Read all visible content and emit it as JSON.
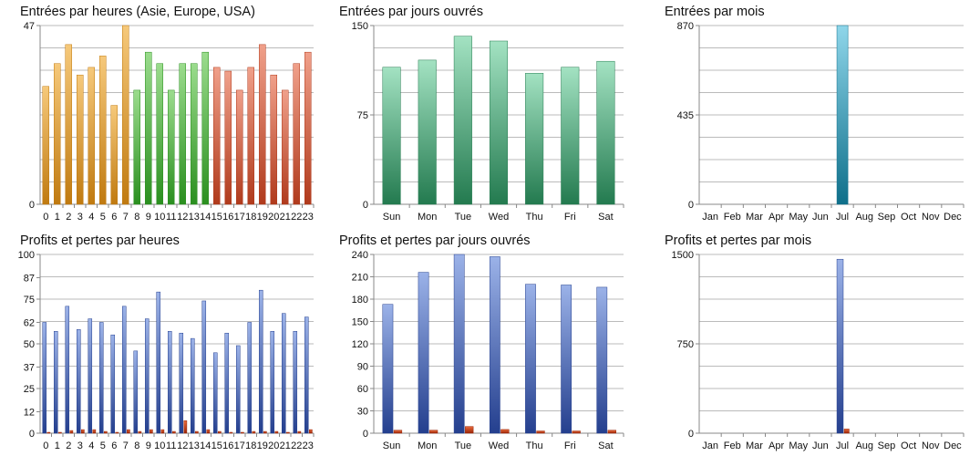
{
  "colors": {
    "orange": [
      "#f6c97b",
      "#c07a10"
    ],
    "green": [
      "#9bdc8d",
      "#2a8f1f"
    ],
    "red": [
      "#f0a08a",
      "#b03a1c"
    ],
    "mint": [
      "#a3e2c2",
      "#237a4f"
    ],
    "cyan": [
      "#8fd6ea",
      "#0e6f8a"
    ],
    "blue": [
      "#9bb2e8",
      "#243f8e"
    ],
    "loss": [
      "#e86a3a",
      "#9a2508"
    ],
    "grid": "#bbbbbb",
    "axis": "#888888"
  },
  "chart_data": [
    {
      "type": "bar",
      "title": "Entrées par heures (Asie, Europe, USA)",
      "categories": [
        "0",
        "1",
        "2",
        "3",
        "4",
        "5",
        "6",
        "7",
        "8",
        "9",
        "10",
        "11",
        "12",
        "13",
        "14",
        "15",
        "16",
        "17",
        "18",
        "19",
        "20",
        "21",
        "22",
        "23"
      ],
      "yticks": [
        "0",
        "47"
      ],
      "ylim": [
        0,
        47
      ],
      "grid": true,
      "series": [
        {
          "values": [
            31,
            37,
            42,
            34,
            36,
            39,
            26,
            47,
            30,
            40,
            37,
            30,
            37,
            37,
            40,
            36,
            35,
            30,
            36,
            42,
            34,
            30,
            37,
            40
          ],
          "colors": [
            "orange",
            "orange",
            "orange",
            "orange",
            "orange",
            "orange",
            "orange",
            "orange",
            "green",
            "green",
            "green",
            "green",
            "green",
            "green",
            "green",
            "red",
            "red",
            "red",
            "red",
            "red",
            "red",
            "red",
            "red",
            "red"
          ]
        }
      ]
    },
    {
      "type": "bar",
      "title": "Entrées par jours ouvrés",
      "categories": [
        "Sun",
        "Mon",
        "Tue",
        "Wed",
        "Thu",
        "Fri",
        "Sat"
      ],
      "yticks": [
        "0",
        "75",
        "150"
      ],
      "ylim": [
        0,
        150
      ],
      "grid": true,
      "series": [
        {
          "values": [
            115,
            121,
            141,
            137,
            110,
            115,
            120
          ],
          "colors": [
            "mint"
          ]
        }
      ]
    },
    {
      "type": "bar",
      "title": "Entrées par mois",
      "categories": [
        "Jan",
        "Feb",
        "Mar",
        "Apr",
        "May",
        "Jun",
        "Jul",
        "Aug",
        "Sep",
        "Oct",
        "Nov",
        "Dec"
      ],
      "yticks": [
        "0",
        "435",
        "870"
      ],
      "ylim": [
        0,
        870
      ],
      "grid": true,
      "series": [
        {
          "values": [
            0,
            0,
            0,
            0,
            0,
            0,
            870,
            0,
            0,
            0,
            0,
            0
          ],
          "colors": [
            "cyan"
          ]
        }
      ]
    },
    {
      "type": "bar",
      "title": "Profits et pertes par heures",
      "categories": [
        "0",
        "1",
        "2",
        "3",
        "4",
        "5",
        "6",
        "7",
        "8",
        "9",
        "10",
        "11",
        "12",
        "13",
        "14",
        "15",
        "16",
        "17",
        "18",
        "19",
        "20",
        "21",
        "22",
        "23"
      ],
      "yticks": [
        "0",
        "12",
        "25",
        "37",
        "50",
        "62",
        "75",
        "87",
        "100"
      ],
      "ylim": [
        0,
        100
      ],
      "grid": true,
      "series": [
        {
          "values": [
            62,
            57,
            71,
            58,
            64,
            62,
            55,
            71,
            46,
            64,
            79,
            57,
            56,
            53,
            74,
            45,
            56,
            49,
            62,
            80,
            57,
            67,
            57,
            65
          ],
          "colors": [
            "blue"
          ]
        },
        {
          "values": [
            0.5,
            0.5,
            1.5,
            2,
            2,
            1,
            0.5,
            2,
            1,
            2,
            2,
            1,
            7,
            1,
            2,
            1,
            0.5,
            0.5,
            1,
            1,
            1,
            0.5,
            1,
            2
          ],
          "colors": [
            "loss"
          ]
        }
      ]
    },
    {
      "type": "bar",
      "title": "Profits et pertes par jours ouvrés",
      "categories": [
        "Sun",
        "Mon",
        "Tue",
        "Wed",
        "Thu",
        "Fri",
        "Sat"
      ],
      "yticks": [
        "0",
        "30",
        "60",
        "90",
        "120",
        "150",
        "180",
        "210",
        "240"
      ],
      "ylim": [
        0,
        240
      ],
      "grid": true,
      "series": [
        {
          "values": [
            173,
            216,
            240,
            237,
            200,
            199,
            196
          ],
          "colors": [
            "blue"
          ]
        },
        {
          "values": [
            4,
            4,
            9,
            5,
            3,
            3,
            4
          ],
          "colors": [
            "loss"
          ]
        }
      ]
    },
    {
      "type": "bar",
      "title": "Profits et pertes par mois",
      "categories": [
        "Jan",
        "Feb",
        "Mar",
        "Apr",
        "May",
        "Jun",
        "Jul",
        "Aug",
        "Sep",
        "Oct",
        "Nov",
        "Dec"
      ],
      "yticks": [
        "0",
        "750",
        "1500"
      ],
      "ylim": [
        0,
        1500
      ],
      "grid": true,
      "series": [
        {
          "values": [
            0,
            0,
            0,
            0,
            0,
            0,
            1460,
            0,
            0,
            0,
            0,
            0
          ],
          "colors": [
            "blue"
          ]
        },
        {
          "values": [
            0,
            0,
            0,
            0,
            0,
            0,
            35,
            0,
            0,
            0,
            0,
            0
          ],
          "colors": [
            "loss"
          ]
        }
      ]
    }
  ]
}
